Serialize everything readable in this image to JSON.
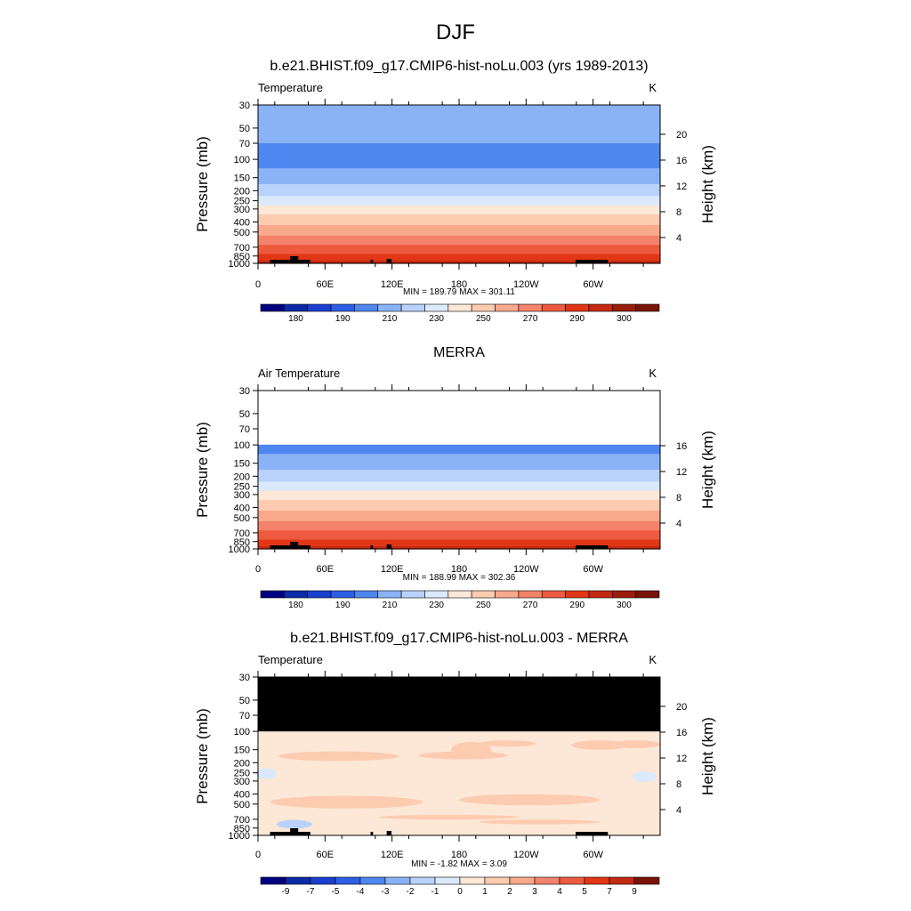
{
  "figure": {
    "title": "DJF"
  },
  "colors": {
    "temperature_levels": [
      "#000080",
      "#0a2aa8",
      "#1a3fd0",
      "#2c5ee6",
      "#4f86f0",
      "#8ab3f7",
      "#b9d2fb",
      "#dae9fb",
      "#fde7d6",
      "#fdcbb0",
      "#f9a98c",
      "#f4836b",
      "#ee5a3f",
      "#e23616",
      "#c42912",
      "#9b1d0b",
      "#7a1207"
    ],
    "difference_levels": [
      "#000080",
      "#0a2aa8",
      "#1a3fd0",
      "#2c5ee6",
      "#4f86f0",
      "#8ab3f7",
      "#b9d2fb",
      "#dae9fb",
      "#fde7d6",
      "#fdcbb0",
      "#f9a98c",
      "#f4836b",
      "#ee5a3f",
      "#e23616",
      "#c42912",
      "#7a1207"
    ],
    "missing": "#000000"
  },
  "chart_data": [
    {
      "type": "heatmap",
      "title": "b.e21.BHIST.f09_g17.CMIP6-hist-noLu.003 (yrs 1989-2013)",
      "variable": "Temperature",
      "units": "K",
      "ylabel": "Pressure (mb)",
      "y2label": "Height (km)",
      "x_ticks": [
        "0",
        "60E",
        "120E",
        "180",
        "120W",
        "60W"
      ],
      "y_ticks": [
        "30",
        "50",
        "70",
        "100",
        "150",
        "200",
        "250",
        "300",
        "400",
        "500",
        "700",
        "850",
        "1000"
      ],
      "y2_ticks": [
        "20",
        "16",
        "12",
        "8",
        "4"
      ],
      "stats": "MIN = 189.79  MAX = 301.11",
      "colorbar_labels": [
        "180",
        "190",
        "210",
        "230",
        "250",
        "270",
        "290",
        "300"
      ],
      "profile": [
        {
          "p": 30,
          "T": 208
        },
        {
          "p": 50,
          "T": 205
        },
        {
          "p": 70,
          "T": 200
        },
        {
          "p": 100,
          "T": 195
        },
        {
          "p": 150,
          "T": 205
        },
        {
          "p": 200,
          "T": 215
        },
        {
          "p": 250,
          "T": 225
        },
        {
          "p": 300,
          "T": 235
        },
        {
          "p": 400,
          "T": 248
        },
        {
          "p": 500,
          "T": 256
        },
        {
          "p": 700,
          "T": 272
        },
        {
          "p": 850,
          "T": 282
        },
        {
          "p": 1000,
          "T": 294
        }
      ]
    },
    {
      "type": "heatmap",
      "title": "MERRA",
      "variable": "Air Temperature",
      "units": "K",
      "ylabel": "Pressure (mb)",
      "y2label": "Height (km)",
      "x_ticks": [
        "0",
        "60E",
        "120E",
        "180",
        "120W",
        "60W"
      ],
      "y_ticks": [
        "30",
        "50",
        "70",
        "100",
        "150",
        "200",
        "250",
        "300",
        "400",
        "500",
        "700",
        "850",
        "1000"
      ],
      "y2_ticks": [
        "16",
        "12",
        "8",
        "4"
      ],
      "stats": "MIN = 188.99  MAX = 302.36",
      "colorbar_labels": [
        "180",
        "190",
        "210",
        "230",
        "250",
        "270",
        "290",
        "300"
      ],
      "missing_above_p": 100,
      "profile": [
        {
          "p": 100,
          "T": 195
        },
        {
          "p": 150,
          "T": 205
        },
        {
          "p": 200,
          "T": 215
        },
        {
          "p": 250,
          "T": 225
        },
        {
          "p": 300,
          "T": 235
        },
        {
          "p": 400,
          "T": 248
        },
        {
          "p": 500,
          "T": 256
        },
        {
          "p": 700,
          "T": 272
        },
        {
          "p": 850,
          "T": 282
        },
        {
          "p": 1000,
          "T": 294
        }
      ]
    },
    {
      "type": "heatmap",
      "title": "b.e21.BHIST.f09_g17.CMIP6-hist-noLu.003 - MERRA",
      "variable": "Temperature",
      "units": "K",
      "ylabel": "Pressure (mb)",
      "y2label": "Height (km)",
      "x_ticks": [
        "0",
        "60E",
        "120E",
        "180",
        "120W",
        "60W"
      ],
      "y_ticks": [
        "30",
        "50",
        "70",
        "100",
        "150",
        "200",
        "250",
        "300",
        "400",
        "500",
        "700",
        "850",
        "1000"
      ],
      "y2_ticks": [
        "20",
        "16",
        "12",
        "8",
        "4"
      ],
      "stats": "MIN =  -1.82  MAX =   3.09",
      "colorbar_labels": [
        "-9",
        "-7",
        "-5",
        "-4",
        "-3",
        "-2",
        "-1",
        "0",
        "1",
        "2",
        "3",
        "4",
        "5",
        "7",
        "9"
      ],
      "missing_above_p": 100,
      "background_value": 0.5
    }
  ]
}
